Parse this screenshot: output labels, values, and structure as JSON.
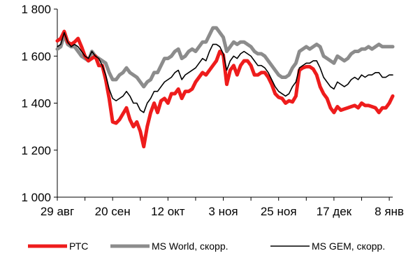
{
  "chart_data": {
    "type": "line",
    "title": "",
    "xlabel": "",
    "ylabel": "",
    "ylim": [
      1000,
      1800
    ],
    "y_ticks": [
      1000,
      1200,
      1400,
      1600,
      1800
    ],
    "y_tick_labels": [
      "1 000",
      "1 200",
      "1 400",
      "1 600",
      "1 800"
    ],
    "x_tick_labels": [
      "29 авг",
      "20 сен",
      "12 окт",
      "3 ноя",
      "25 ноя",
      "17 дек",
      "8 янв"
    ],
    "x_tick_positions": [
      0,
      16,
      32,
      48,
      64,
      80,
      96
    ],
    "xlim": [
      0,
      97
    ],
    "grid": false,
    "legend_position": "bottom",
    "series": [
      {
        "name": "РТС",
        "color": "#ee1c1c",
        "values": [
          1665,
          1675,
          1705,
          1660,
          1650,
          1660,
          1675,
          1640,
          1600,
          1580,
          1590,
          1600,
          1560,
          1560,
          1500,
          1420,
          1320,
          1315,
          1330,
          1355,
          1380,
          1330,
          1300,
          1320,
          1280,
          1215,
          1300,
          1360,
          1400,
          1360,
          1410,
          1420,
          1400,
          1440,
          1440,
          1460,
          1420,
          1450,
          1450,
          1460,
          1490,
          1510,
          1530,
          1520,
          1540,
          1560,
          1580,
          1620,
          1605,
          1480,
          1540,
          1560,
          1520,
          1560,
          1580,
          1580,
          1560,
          1520,
          1520,
          1530,
          1530,
          1510,
          1480,
          1440,
          1425,
          1420,
          1400,
          1410,
          1405,
          1430,
          1540,
          1550,
          1555,
          1555,
          1545,
          1520,
          1470,
          1440,
          1420,
          1380,
          1360,
          1385,
          1370,
          1375,
          1380,
          1385,
          1390,
          1380,
          1400,
          1390,
          1390,
          1385,
          1380,
          1360,
          1380,
          1380,
          1400,
          1430
        ]
      },
      {
        "name": "MS World, скорр.",
        "color": "#8c8c8c",
        "values": [
          1630,
          1640,
          1690,
          1650,
          1640,
          1640,
          1620,
          1600,
          1590,
          1580,
          1620,
          1600,
          1590,
          1580,
          1570,
          1530,
          1500,
          1500,
          1520,
          1530,
          1550,
          1530,
          1520,
          1510,
          1490,
          1470,
          1490,
          1500,
          1530,
          1530,
          1560,
          1590,
          1590,
          1600,
          1620,
          1630,
          1590,
          1600,
          1620,
          1630,
          1620,
          1640,
          1660,
          1660,
          1690,
          1720,
          1720,
          1700,
          1680,
          1620,
          1640,
          1660,
          1650,
          1660,
          1660,
          1650,
          1640,
          1620,
          1610,
          1610,
          1600,
          1580,
          1560,
          1540,
          1520,
          1510,
          1510,
          1520,
          1550,
          1570,
          1620,
          1630,
          1640,
          1630,
          1640,
          1650,
          1640,
          1600,
          1590,
          1580,
          1570,
          1600,
          1590,
          1580,
          1590,
          1610,
          1620,
          1620,
          1630,
          1630,
          1640,
          1630,
          1640,
          1650,
          1640,
          1640,
          1640,
          1640
        ]
      },
      {
        "name": "MS GEM,  скорр.",
        "color": "#000000",
        "values": [
          1640,
          1650,
          1700,
          1660,
          1640,
          1650,
          1640,
          1620,
          1600,
          1590,
          1620,
          1600,
          1590,
          1560,
          1520,
          1460,
          1420,
          1410,
          1420,
          1430,
          1450,
          1430,
          1400,
          1400,
          1370,
          1360,
          1400,
          1420,
          1450,
          1450,
          1470,
          1490,
          1500,
          1510,
          1530,
          1540,
          1500,
          1520,
          1530,
          1540,
          1550,
          1570,
          1590,
          1580,
          1620,
          1650,
          1650,
          1640,
          1610,
          1540,
          1580,
          1600,
          1590,
          1610,
          1620,
          1610,
          1600,
          1580,
          1560,
          1560,
          1550,
          1530,
          1500,
          1470,
          1450,
          1440,
          1430,
          1440,
          1470,
          1490,
          1550,
          1560,
          1570,
          1570,
          1580,
          1580,
          1550,
          1510,
          1490,
          1470,
          1460,
          1490,
          1480,
          1470,
          1480,
          1500,
          1510,
          1500,
          1520,
          1510,
          1520,
          1520,
          1530,
          1530,
          1510,
          1510,
          1520,
          1520
        ]
      }
    ]
  }
}
